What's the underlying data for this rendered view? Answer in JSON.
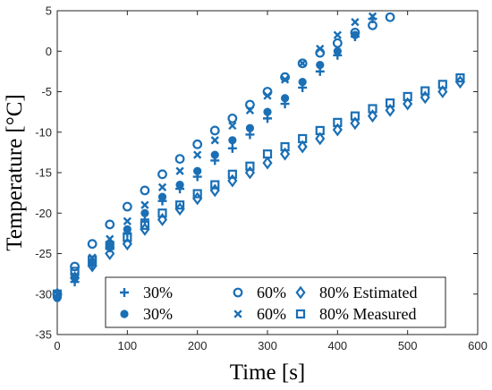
{
  "chart_data": {
    "type": "scatter",
    "xlabel": "Time [s]",
    "ylabel": "Temperature [°C]",
    "xlim": [
      0,
      600
    ],
    "ylim": [
      -35,
      5
    ],
    "xticks": [
      0,
      100,
      200,
      300,
      400,
      500,
      600
    ],
    "yticks": [
      -35,
      -30,
      -25,
      -20,
      -15,
      -10,
      -5,
      0,
      5
    ],
    "grid": false,
    "legend_placement": "bottom",
    "color": "#1a6fb5",
    "series": [
      {
        "name": "30%",
        "marker": "plus",
        "x": [
          0,
          25,
          50,
          75,
          100,
          125,
          150,
          175,
          200,
          225,
          250,
          275,
          300,
          325,
          350,
          375,
          400,
          425,
          450
        ],
        "y": [
          -30.3,
          -28.5,
          -26.5,
          -24.3,
          -22.5,
          -20.8,
          -18.5,
          -17.0,
          -15.5,
          -13.5,
          -12.0,
          -10.3,
          -8.3,
          -6.5,
          -4.5,
          -2.5,
          -0.5,
          1.8,
          4.0
        ]
      },
      {
        "name": "60%",
        "marker": "circle",
        "x": [
          0,
          25,
          50,
          75,
          100,
          125,
          150,
          175,
          200,
          225,
          250,
          275,
          300,
          325,
          350,
          375,
          400,
          425,
          450,
          475
        ],
        "y": [
          -30.0,
          -26.6,
          -23.8,
          -21.4,
          -19.2,
          -17.2,
          -15.2,
          -13.3,
          -11.5,
          -9.8,
          -8.3,
          -6.6,
          -5.0,
          -3.2,
          -1.5,
          -0.2,
          1.0,
          2.3,
          3.2,
          4.2
        ]
      },
      {
        "name": "80% Estimated",
        "marker": "diamond",
        "x": [
          0,
          25,
          50,
          75,
          100,
          125,
          150,
          175,
          200,
          225,
          250,
          275,
          300,
          325,
          350,
          375,
          400,
          425,
          450,
          475,
          500,
          525,
          550,
          575
        ],
        "y": [
          -30.0,
          -28.0,
          -26.5,
          -25.0,
          -23.8,
          -22.0,
          -20.8,
          -19.5,
          -18.2,
          -17.2,
          -16.0,
          -15.0,
          -13.8,
          -12.7,
          -11.8,
          -10.8,
          -9.7,
          -8.9,
          -8.0,
          -7.3,
          -6.5,
          -5.7,
          -5.0,
          -3.8
        ]
      },
      {
        "name": "30%",
        "marker": "dot",
        "x": [
          0,
          25,
          50,
          75,
          100,
          125,
          150,
          175,
          200,
          225,
          250,
          275,
          300,
          325,
          350,
          375,
          400,
          425
        ],
        "y": [
          -30.5,
          -28.0,
          -26.0,
          -23.8,
          -22.0,
          -20.0,
          -18.0,
          -16.5,
          -14.8,
          -12.8,
          -11.0,
          -9.5,
          -7.5,
          -5.8,
          -3.8,
          -1.7,
          0.0,
          2.0
        ]
      },
      {
        "name": "60%",
        "marker": "cross",
        "x": [
          0,
          25,
          50,
          75,
          100,
          125,
          150,
          175,
          200,
          225,
          250,
          275,
          300,
          325,
          350,
          375,
          400,
          425,
          450
        ],
        "y": [
          -30.0,
          -27.8,
          -25.5,
          -23.2,
          -21.0,
          -19.0,
          -16.8,
          -14.8,
          -12.8,
          -11.0,
          -9.2,
          -7.3,
          -5.5,
          -3.5,
          -1.5,
          0.3,
          2.0,
          3.6,
          4.3
        ]
      },
      {
        "name": "80% Measured",
        "marker": "square",
        "x": [
          0,
          25,
          50,
          75,
          100,
          125,
          150,
          175,
          200,
          225,
          250,
          275,
          300,
          325,
          350,
          375,
          400,
          425,
          450,
          475,
          500,
          525,
          550,
          575
        ],
        "y": [
          -30.0,
          -27.2,
          -25.8,
          -24.0,
          -23.0,
          -21.5,
          -20.0,
          -19.0,
          -17.6,
          -16.5,
          -15.2,
          -14.2,
          -12.7,
          -11.8,
          -10.8,
          -9.8,
          -8.8,
          -8.0,
          -7.1,
          -6.4,
          -5.6,
          -4.9,
          -4.1,
          -3.3
        ]
      }
    ]
  }
}
